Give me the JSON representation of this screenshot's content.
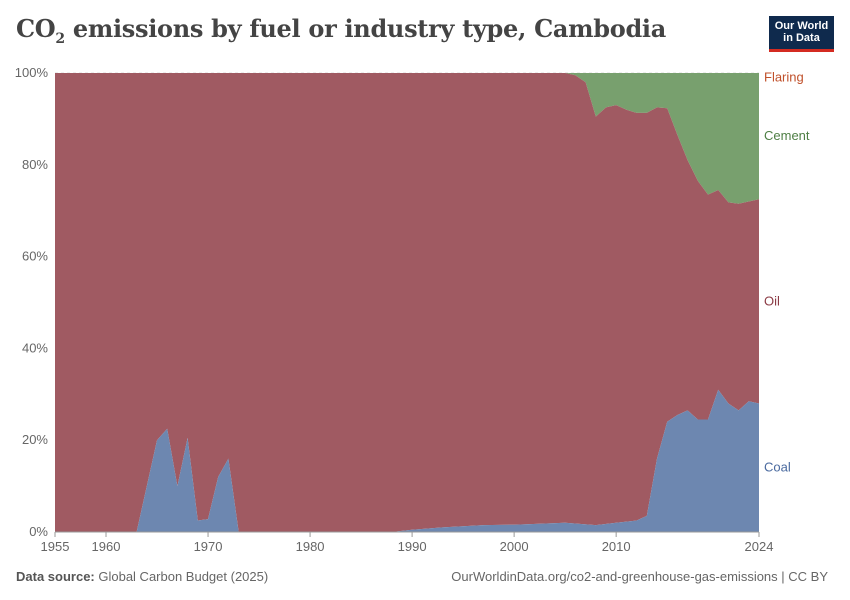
{
  "header": {
    "title_pre": "CO",
    "title_sub": "2",
    "title_post": " emissions by fuel or industry type, Cambodia"
  },
  "logo": {
    "line1": "Our World",
    "line2": "in Data"
  },
  "footer": {
    "source_label": "Data source:",
    "source_value": " Global Carbon Budget (2025)",
    "url": "OurWorldinData.org/co2-and-greenhouse-gas-emissions | CC BY"
  },
  "colors": {
    "coal": "#6d87b0",
    "oil": "#a05a62",
    "cement": "#78a06e",
    "flaring": "#c8583a",
    "coal_label": "#4a6a9f",
    "oil_label": "#8b3a44",
    "cement_label": "#4f7f45",
    "flaring_label": "#c0502a"
  },
  "chart_data": {
    "type": "area",
    "stacked": true,
    "normalized": true,
    "xlim": [
      1955,
      2024
    ],
    "ylim": [
      0,
      100
    ],
    "x_ticks": [
      "1955",
      "1960",
      "1970",
      "1980",
      "1990",
      "2000",
      "2010",
      "2024"
    ],
    "y_ticks": [
      "0%",
      "20%",
      "40%",
      "60%",
      "80%",
      "100%"
    ],
    "legend_placement": "right, inline labels",
    "grid": "horizontal dotted",
    "series": [
      {
        "name": "Coal",
        "points": [
          [
            1955,
            0
          ],
          [
            1963,
            0
          ],
          [
            1964,
            10
          ],
          [
            1965,
            20
          ],
          [
            1966,
            22.5
          ],
          [
            1967,
            10
          ],
          [
            1968,
            20.5
          ],
          [
            1969,
            2.5
          ],
          [
            1970,
            2.8
          ],
          [
            1971,
            12
          ],
          [
            1972,
            16
          ],
          [
            1973,
            0
          ],
          [
            1988,
            0
          ],
          [
            1990,
            0.5
          ],
          [
            1993,
            1
          ],
          [
            1997,
            1.5
          ],
          [
            2000,
            1.6
          ],
          [
            2005,
            2
          ],
          [
            2008,
            1.5
          ],
          [
            2010,
            2
          ],
          [
            2012,
            2.5
          ],
          [
            2013,
            3.5
          ],
          [
            2014,
            16
          ],
          [
            2015,
            24
          ],
          [
            2016,
            25.5
          ],
          [
            2017,
            26.5
          ],
          [
            2018,
            24.5
          ],
          [
            2019,
            24.5
          ],
          [
            2020,
            31
          ],
          [
            2021,
            28
          ],
          [
            2022,
            26.5
          ],
          [
            2023,
            28.5
          ],
          [
            2024,
            28
          ]
        ]
      },
      {
        "name": "Oil",
        "points": [
          [
            1955,
            100
          ],
          [
            2005,
            100
          ],
          [
            2006,
            99.5
          ],
          [
            2007,
            98
          ],
          [
            2008,
            90.5
          ],
          [
            2009,
            92.5
          ],
          [
            2010,
            93
          ],
          [
            2011,
            92
          ],
          [
            2012,
            91.3
          ],
          [
            2013,
            91.3
          ],
          [
            2014,
            92.5
          ],
          [
            2015,
            92.3
          ],
          [
            2016,
            86.5
          ],
          [
            2017,
            81
          ],
          [
            2018,
            76.5
          ],
          [
            2019,
            73.5
          ],
          [
            2020,
            74.5
          ],
          [
            2021,
            71.8
          ],
          [
            2022,
            71.5
          ],
          [
            2023,
            72
          ],
          [
            2024,
            72.5
          ]
        ]
      },
      {
        "name": "Cement",
        "points": [
          [
            1955,
            100
          ],
          [
            2023,
            100
          ],
          [
            2024,
            100
          ]
        ]
      },
      {
        "name": "Flaring",
        "points": [
          [
            1955,
            100
          ],
          [
            2024,
            100
          ]
        ]
      }
    ]
  }
}
